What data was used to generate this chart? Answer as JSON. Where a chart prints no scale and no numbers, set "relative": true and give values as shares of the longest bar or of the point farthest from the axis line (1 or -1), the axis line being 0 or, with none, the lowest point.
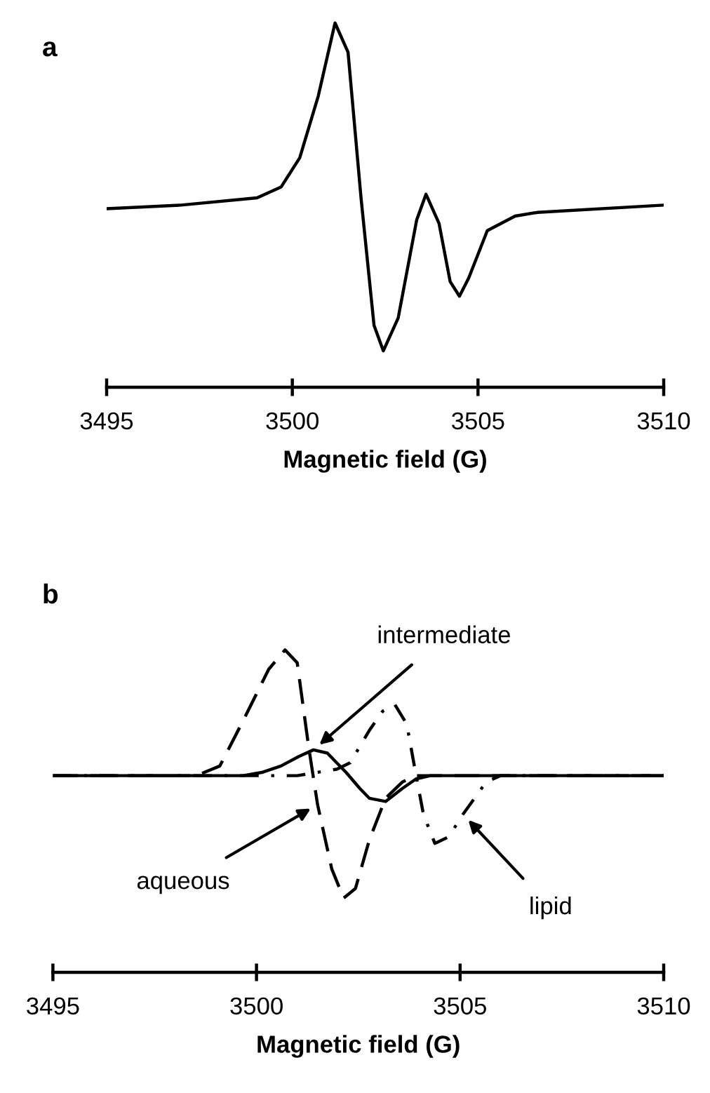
{
  "chart_data": [
    {
      "type": "line",
      "title": "a",
      "xlabel": "Magnetic field (G)",
      "relative": true,
      "xlim": [
        3495,
        3510
      ],
      "xticks": [
        3495,
        3500,
        3505,
        3510
      ],
      "tick_labels": "x",
      "grid": false,
      "series": [
        {
          "color": "#000000",
          "line_style": "solid",
          "x": [
            3495,
            3497,
            3499.05,
            3499.7,
            3500.2,
            3500.7,
            3501.15,
            3501.5,
            3501.85,
            3502.2,
            3502.45,
            3502.85,
            3503.35,
            3503.6,
            3503.95,
            3504.25,
            3504.5,
            3504.75,
            3505.25,
            3506.0,
            3506.6,
            3510
          ],
          "values": [
            0.49,
            0.5,
            0.52,
            0.55,
            0.63,
            0.8,
            1.0,
            0.92,
            0.52,
            0.17,
            0.1,
            0.19,
            0.46,
            0.53,
            0.45,
            0.29,
            0.25,
            0.3,
            0.43,
            0.47,
            0.48,
            0.5
          ]
        }
      ]
    },
    {
      "type": "line",
      "title": "b",
      "xlabel": "Magnetic field (G)",
      "relative": true,
      "xlim": [
        3495,
        3510
      ],
      "xticks": [
        3495,
        3500,
        3505,
        3510
      ],
      "tick_labels": "x",
      "grid": false,
      "series": [
        {
          "color": "#000000",
          "line_style": "dashed",
          "x": [
            3495,
            3498.52,
            3499.1,
            3499.67,
            3500.3,
            3500.7,
            3501.0,
            3501.28,
            3501.5,
            3501.85,
            3502.14,
            3502.43,
            3502.77,
            3503.17,
            3503.58,
            3503.92,
            3510
          ],
          "values": [
            0.61,
            0.61,
            0.64,
            0.78,
            0.94,
            1.0,
            0.96,
            0.7,
            0.52,
            0.32,
            0.23,
            0.26,
            0.41,
            0.54,
            0.59,
            0.61,
            0.61
          ]
        },
        {
          "color": "#000000",
          "line_style": "dashdot",
          "x": [
            3495,
            3501.0,
            3501.97,
            3502.3,
            3502.77,
            3503.1,
            3503.4,
            3503.69,
            3503.92,
            3504.1,
            3504.38,
            3504.72,
            3505.07,
            3505.64,
            3505.99,
            3510
          ],
          "values": [
            0.61,
            0.61,
            0.63,
            0.65,
            0.75,
            0.81,
            0.83,
            0.77,
            0.61,
            0.49,
            0.4,
            0.42,
            0.49,
            0.59,
            0.61,
            0.61
          ]
        },
        {
          "color": "#000000",
          "line_style": "solid",
          "x": [
            3495,
            3499.67,
            3500.13,
            3500.6,
            3501.05,
            3501.4,
            3501.74,
            3502.2,
            3502.54,
            3502.77,
            3503.17,
            3503.58,
            3503.92,
            3504.27,
            3510
          ],
          "values": [
            0.61,
            0.61,
            0.62,
            0.64,
            0.67,
            0.69,
            0.68,
            0.62,
            0.57,
            0.54,
            0.53,
            0.57,
            0.6,
            0.61,
            0.61
          ]
        }
      ],
      "annotations": [
        {
          "text": "intermediate",
          "x": 3501.4,
          "y": 0.69
        },
        {
          "text": "aqueous",
          "x": 3501.5,
          "y": 0.52
        },
        {
          "text": "lipid",
          "x": 3505.07,
          "y": 0.49
        }
      ]
    }
  ]
}
